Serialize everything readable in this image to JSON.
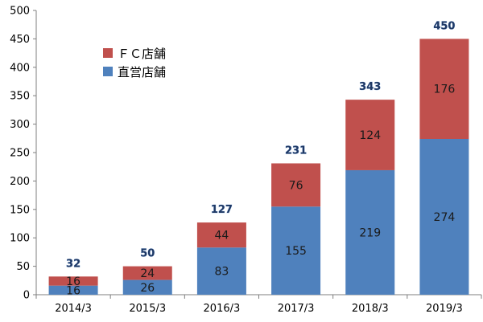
{
  "chart_data": {
    "type": "bar",
    "stacked": true,
    "categories": [
      "2014/3",
      "2015/3",
      "2016/3",
      "2017/3",
      "2018/3",
      "2019/3"
    ],
    "series": [
      {
        "name": "直営店舗",
        "values": [
          16,
          26,
          83,
          155,
          219,
          274
        ],
        "color": "#4f81bd"
      },
      {
        "name": "ＦＣ店舗",
        "values": [
          16,
          24,
          44,
          76,
          124,
          176
        ],
        "color": "#c0504d"
      }
    ],
    "totals": [
      32,
      50,
      127,
      231,
      343,
      450
    ],
    "ylim": [
      0,
      500
    ],
    "yticks": [
      0,
      50,
      100,
      150,
      200,
      250,
      300,
      350,
      400,
      450,
      500
    ],
    "grid": false,
    "legend_position": "top-left"
  },
  "colors": {
    "fc": "#c0504d",
    "direct": "#4f81bd",
    "total_label": "#1f3864"
  }
}
